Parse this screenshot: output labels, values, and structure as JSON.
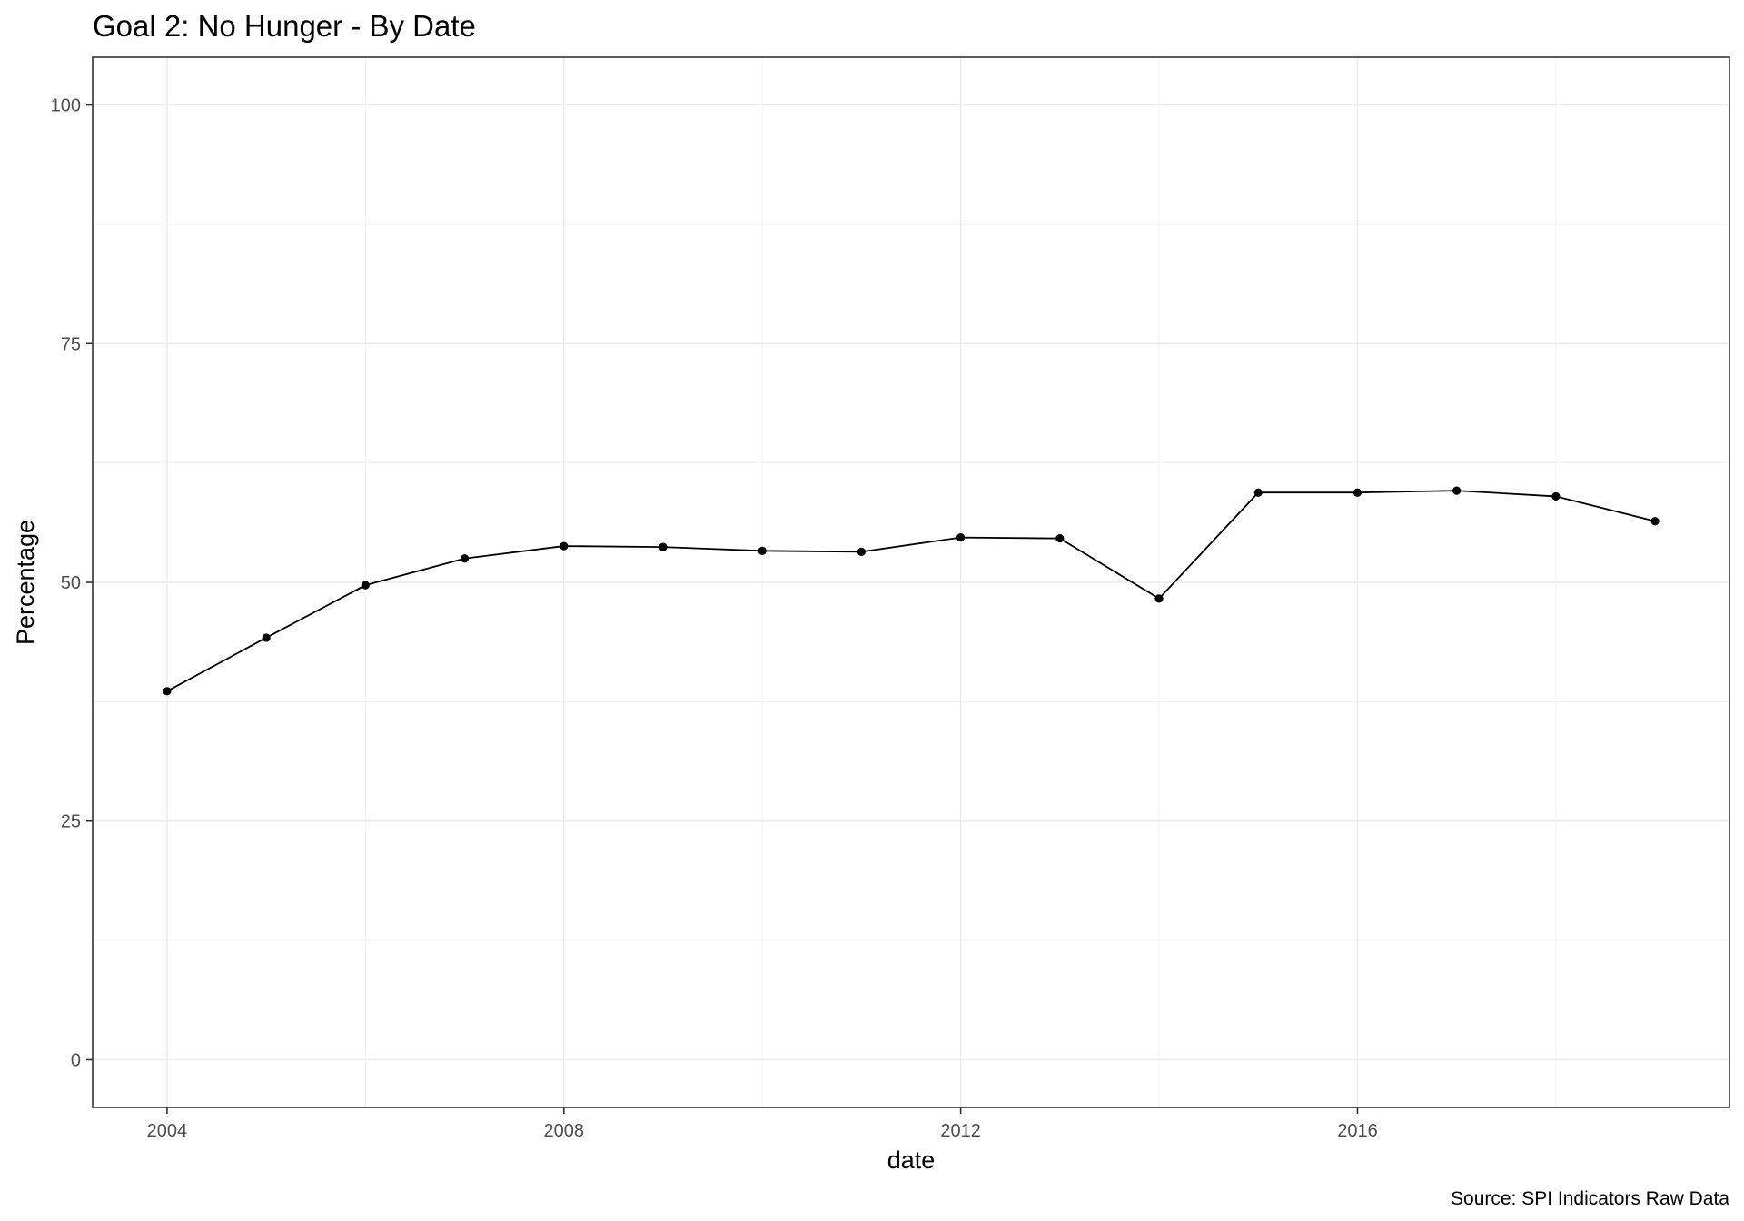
{
  "chart_data": {
    "type": "line",
    "title": "Goal 2: No Hunger - By Date",
    "xlabel": "date",
    "ylabel": "Percentage",
    "caption": "Source: SPI Indicators Raw Data",
    "x": [
      2004,
      2005,
      2006,
      2007,
      2008,
      2009,
      2010,
      2011,
      2012,
      2013,
      2014,
      2015,
      2016,
      2017,
      2018,
      2019
    ],
    "series": [
      {
        "values": [
          38.6,
          44.2,
          49.7,
          52.5,
          53.8,
          53.7,
          53.3,
          53.2,
          54.7,
          54.6,
          48.3,
          59.4,
          59.4,
          59.6,
          59.0,
          56.4
        ]
      }
    ],
    "xlim": [
      2003.25,
      2019.75
    ],
    "ylim": [
      -5,
      105
    ],
    "x_ticks": [
      {
        "value": 2004,
        "label": "2004"
      },
      {
        "value": 2008,
        "label": "2008"
      },
      {
        "value": 2012,
        "label": "2012"
      },
      {
        "value": 2016,
        "label": "2016"
      }
    ],
    "y_ticks": [
      {
        "value": 0,
        "label": "0"
      },
      {
        "value": 25,
        "label": "25"
      },
      {
        "value": 50,
        "label": "50"
      },
      {
        "value": 75,
        "label": "75"
      },
      {
        "value": 100,
        "label": "100"
      }
    ],
    "x_minor_ticks": [
      2006,
      2010,
      2014,
      2018
    ],
    "y_minor_ticks": [
      12.5,
      37.5,
      62.5,
      87.5
    ],
    "grid": true,
    "legend": "none",
    "colors": {
      "line": "#000000",
      "point": "#000000",
      "grid_major": "#ebebeb",
      "grid_minor": "#f2f2f2",
      "panel_border": "#333333",
      "tick_label": "#4d4d4d",
      "background": "#ffffff"
    }
  }
}
